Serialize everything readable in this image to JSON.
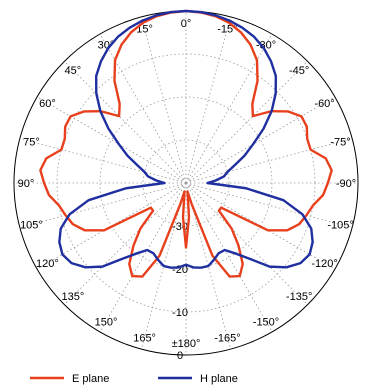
{
  "chart_data": {
    "type": "polar-line",
    "angle_unit": "degrees",
    "angle_direction": "clockwise-negative",
    "zero_direction": "top",
    "radial_axis": {
      "min": -40,
      "max": 0,
      "rings": [
        -40,
        -30,
        -20,
        -10,
        0
      ],
      "tick_labels": [
        {
          "value": -30,
          "text": "-30"
        },
        {
          "value": -20,
          "text": "-20"
        },
        {
          "value": -10,
          "text": "-10"
        },
        {
          "value": 0,
          "text": "0"
        }
      ]
    },
    "angle_tick_labels": [
      {
        "angle": 0,
        "text": "0°"
      },
      {
        "angle": 15,
        "text": "15°"
      },
      {
        "angle": 30,
        "text": "30°"
      },
      {
        "angle": 45,
        "text": "45°"
      },
      {
        "angle": 60,
        "text": "60°"
      },
      {
        "angle": 75,
        "text": "75°"
      },
      {
        "angle": 90,
        "text": "90°"
      },
      {
        "angle": 105,
        "text": "105°"
      },
      {
        "angle": 120,
        "text": "120°"
      },
      {
        "angle": 135,
        "text": "135°"
      },
      {
        "angle": 150,
        "text": "150°"
      },
      {
        "angle": 165,
        "text": "165°"
      },
      {
        "angle": 180,
        "text": "±180°"
      },
      {
        "angle": -165,
        "text": "-165°"
      },
      {
        "angle": -150,
        "text": "-150°"
      },
      {
        "angle": -135,
        "text": "-135°"
      },
      {
        "angle": -120,
        "text": "-120°"
      },
      {
        "angle": -105,
        "text": "-105°"
      },
      {
        "angle": -90,
        "text": "-90°"
      },
      {
        "angle": -75,
        "text": "-75°"
      },
      {
        "angle": -60,
        "text": "-60°"
      },
      {
        "angle": -45,
        "text": "-45°"
      },
      {
        "angle": -30,
        "text": "-30°"
      },
      {
        "angle": -15,
        "text": "-15°"
      }
    ],
    "series": [
      {
        "name": "E plane",
        "color": "#e8401c",
        "angles": [
          0,
          5,
          10,
          15,
          20,
          25,
          30,
          35,
          40,
          45,
          50,
          55,
          60,
          65,
          70,
          75,
          80,
          85,
          90,
          95,
          100,
          105,
          110,
          115,
          120,
          125,
          130,
          135,
          140,
          145,
          150,
          155,
          160,
          165,
          170,
          175,
          180
        ],
        "values": [
          0,
          -0.2,
          -0.6,
          -1.4,
          -2.7,
          -4.5,
          -7,
          -11,
          -16,
          -18,
          -14,
          -11,
          -9,
          -9,
          -10,
          -10,
          -7,
          -6,
          -7,
          -8,
          -10,
          -11,
          -12,
          -14,
          -18,
          -30,
          -30,
          -25,
          -21,
          -17,
          -15,
          -16,
          -22,
          -35,
          -38,
          -32,
          -25
        ],
        "symmetric": true
      },
      {
        "name": "H plane",
        "color": "#1f2fa0",
        "angles": [
          0,
          5,
          10,
          15,
          20,
          25,
          30,
          35,
          40,
          45,
          50,
          55,
          60,
          65,
          70,
          75,
          80,
          85,
          90,
          95,
          100,
          105,
          110,
          115,
          120,
          125,
          130,
          135,
          140,
          145,
          150,
          155,
          160,
          165,
          170,
          175,
          180
        ],
        "values": [
          0,
          -0.1,
          -0.4,
          -0.9,
          -1.6,
          -2.5,
          -3.8,
          -5.5,
          -7.5,
          -10.5,
          -14,
          -18,
          -22,
          -25,
          -28,
          -30,
          -31,
          -33,
          -35,
          -26,
          -17,
          -12,
          -9,
          -7.5,
          -6.8,
          -7.5,
          -9.5,
          -12.5,
          -17,
          -20,
          -22,
          -22,
          -21,
          -20,
          -20,
          -20.3,
          -21
        ],
        "symmetric": true
      }
    ],
    "legend_position": "bottom",
    "grid": true
  }
}
